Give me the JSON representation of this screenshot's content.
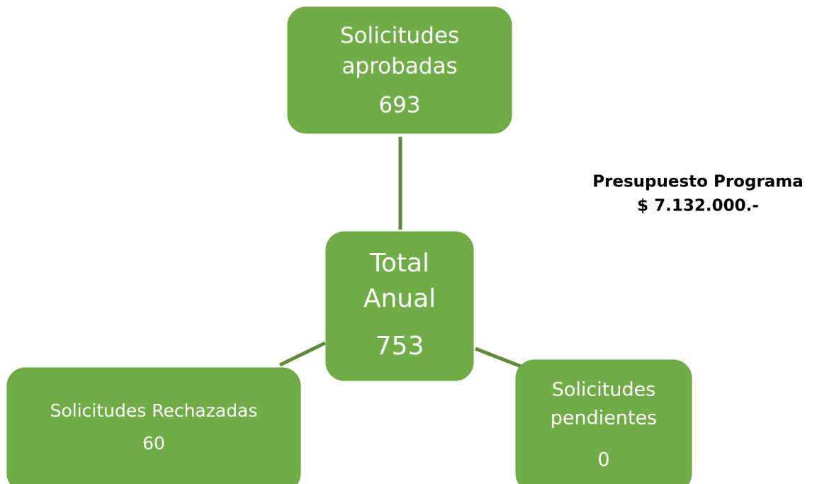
{
  "nodes": [
    {
      "lines": [
        "Solicitudes",
        "aprobadas"
      ],
      "value": 693
    },
    {
      "lines": [
        "Total",
        "Anual"
      ],
      "value": 753
    },
    {
      "lines": [
        "Solicitudes Rechazadas"
      ],
      "value": 60
    },
    {
      "lines": [
        "Solicitudes",
        "pendientes"
      ],
      "value": 0
    }
  ],
  "budget": {
    "title": "Presupuesto Programa",
    "amount": "$ 7.132.000.-"
  }
}
